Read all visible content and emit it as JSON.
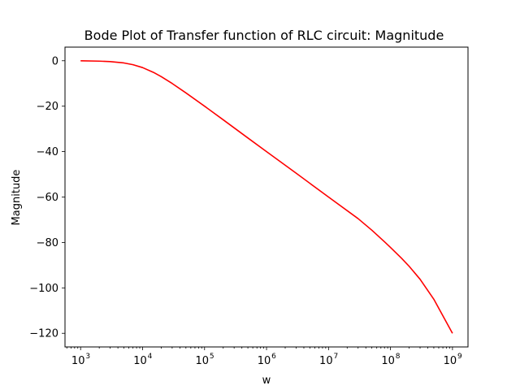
{
  "chart_data": {
    "type": "line",
    "title": "Bode Plot of Transfer function of RLC circuit: Magnitude",
    "xlabel": "w",
    "ylabel": "Magnitude",
    "x_scale": "log",
    "xlim": [
      560,
      1780000000
    ],
    "ylim": [
      -126,
      6
    ],
    "x_ticks": [
      {
        "value": 1000,
        "label": "10",
        "exp": "3"
      },
      {
        "value": 10000,
        "label": "10",
        "exp": "4"
      },
      {
        "value": 100000,
        "label": "10",
        "exp": "5"
      },
      {
        "value": 1000000,
        "label": "10",
        "exp": "6"
      },
      {
        "value": 10000000,
        "label": "10",
        "exp": "7"
      },
      {
        "value": 100000000,
        "label": "10",
        "exp": "8"
      },
      {
        "value": 1000000000,
        "label": "10",
        "exp": "9"
      }
    ],
    "y_ticks": [
      {
        "value": 0,
        "label": "0"
      },
      {
        "value": -20,
        "label": "−20"
      },
      {
        "value": -40,
        "label": "−40"
      },
      {
        "value": -60,
        "label": "−60"
      },
      {
        "value": -80,
        "label": "−80"
      },
      {
        "value": -100,
        "label": "−100"
      },
      {
        "value": -120,
        "label": "−120"
      }
    ],
    "grid": false,
    "series": [
      {
        "color": "#ff0000",
        "x": [
          1000,
          2000,
          3000,
          5000,
          7000,
          10000,
          15000,
          20000,
          30000,
          50000,
          100000,
          200000,
          500000,
          1000000,
          3000000,
          10000000,
          30000000,
          50000000,
          80000000,
          100000000,
          150000000,
          200000000,
          300000000,
          500000000,
          1000000000
        ],
        "values": [
          0.0,
          -0.17,
          -0.37,
          -0.97,
          -1.74,
          -3.01,
          -5.12,
          -6.99,
          -10.0,
          -14.15,
          -20.0,
          -26.0,
          -34.0,
          -40.0,
          -49.5,
          -60.0,
          -69.5,
          -74.6,
          -79.7,
          -82.2,
          -86.9,
          -90.5,
          -96.2,
          -105.0,
          -120.0
        ]
      }
    ]
  }
}
